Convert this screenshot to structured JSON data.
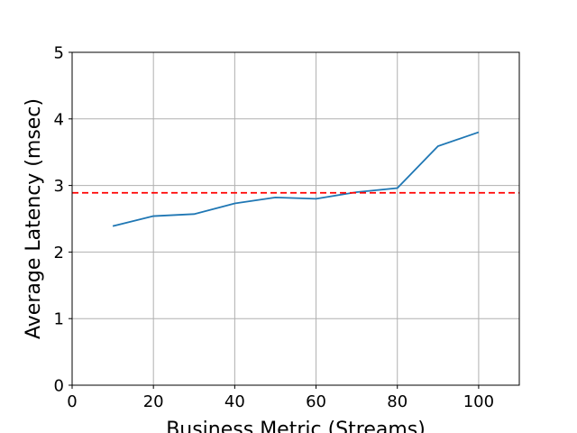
{
  "chart_data": {
    "type": "line",
    "title": "",
    "xlabel": "Business Metric (Streams)",
    "ylabel": "Average Latency (msec)",
    "xlim": [
      0,
      110
    ],
    "ylim": [
      0,
      5
    ],
    "xticks": [
      0,
      20,
      40,
      60,
      80,
      100
    ],
    "yticks": [
      0,
      1,
      2,
      3,
      4,
      5
    ],
    "grid": true,
    "series": [
      {
        "x": [
          10,
          20,
          30,
          40,
          50,
          60,
          70,
          80,
          90,
          100
        ],
        "y": [
          2.39,
          2.54,
          2.57,
          2.73,
          2.82,
          2.8,
          2.9,
          2.96,
          3.59,
          3.8
        ],
        "color": "#1f77b4",
        "style": "solid"
      }
    ],
    "reference_lines": [
      {
        "orientation": "horizontal",
        "y": 2.89,
        "color": "#ff0000",
        "style": "dashed"
      }
    ]
  }
}
